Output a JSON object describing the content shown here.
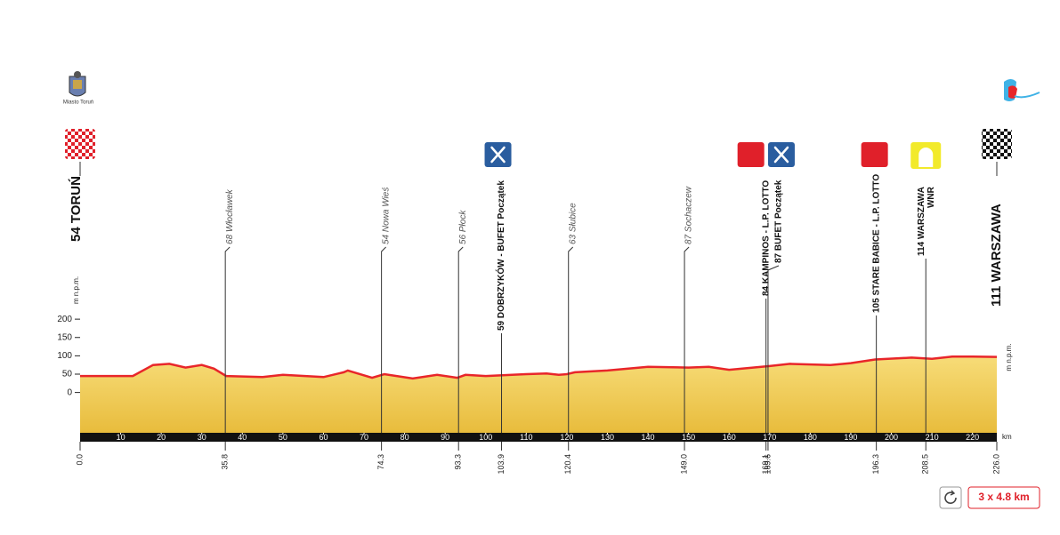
{
  "header": {
    "left_logo_caption": "Miasto Toruń"
  },
  "chart_data": {
    "type": "area",
    "x": [
      0,
      13,
      18,
      22,
      26,
      30,
      33,
      36,
      45,
      50,
      60,
      65,
      66,
      72,
      75,
      82,
      88,
      93,
      95,
      100,
      110,
      115,
      118,
      120,
      122,
      130,
      140,
      150,
      155,
      160,
      170,
      175,
      185,
      190,
      196,
      205,
      210,
      215,
      220,
      226
    ],
    "values": [
      45,
      45,
      75,
      78,
      68,
      75,
      65,
      45,
      42,
      48,
      42,
      55,
      60,
      40,
      50,
      38,
      48,
      40,
      48,
      45,
      50,
      52,
      48,
      50,
      55,
      60,
      70,
      68,
      70,
      62,
      72,
      78,
      75,
      80,
      90,
      95,
      92,
      98,
      98,
      97
    ],
    "color": "#e8262a",
    "fill": "#f3cf5e",
    "xlim": [
      0,
      226
    ],
    "xticks": [
      10,
      20,
      30,
      40,
      50,
      60,
      70,
      80,
      90,
      100,
      110,
      120,
      130,
      140,
      150,
      160,
      170,
      180,
      190,
      200,
      210,
      220
    ],
    "x_label": "km",
    "ylim": [
      -110,
      210
    ],
    "yticks": [
      0,
      50,
      100,
      150,
      200
    ],
    "y_label": "m n.p.m.",
    "waypoints": [
      {
        "km": {
          "value": 0,
          "label": "0.0"
        },
        "name": "54 TORUŃ",
        "icon": "start"
      },
      {
        "km": 35.8,
        "name": "68 Włocławek"
      },
      {
        "km": 74.3,
        "name": "54 Nowa Wieś"
      },
      {
        "km": 93.3,
        "name": "56 Płock"
      },
      {
        "km": 103.9,
        "name": "59 DOBRZYKÓW - BUFET Początek",
        "icon": "feed"
      },
      {
        "km": 120.4,
        "name": "63 Słubice"
      },
      {
        "km": {
          "value": 149,
          "label": "149.0"
        },
        "name": "87 Sochaczew"
      },
      {
        "km": 169.1,
        "name": "84 KAMPINOS - L.P. LOTTO",
        "icon": "sprint"
      },
      {
        "km": 169.6,
        "name": "87 BUFET Początek",
        "icon": "feed"
      },
      {
        "km": 196.3,
        "name": "105 STARE BABICE - L.P. LOTTO",
        "icon": "sprint"
      },
      {
        "km": 208.5,
        "name": "114 WARSZAWA",
        "note": "WNR",
        "icon": "kom"
      },
      {
        "km": {
          "value": 226,
          "label": "226.0"
        },
        "name": "111 WARSZAWA",
        "icon": "finish"
      }
    ]
  },
  "circuit": "3 x 4.8 km"
}
